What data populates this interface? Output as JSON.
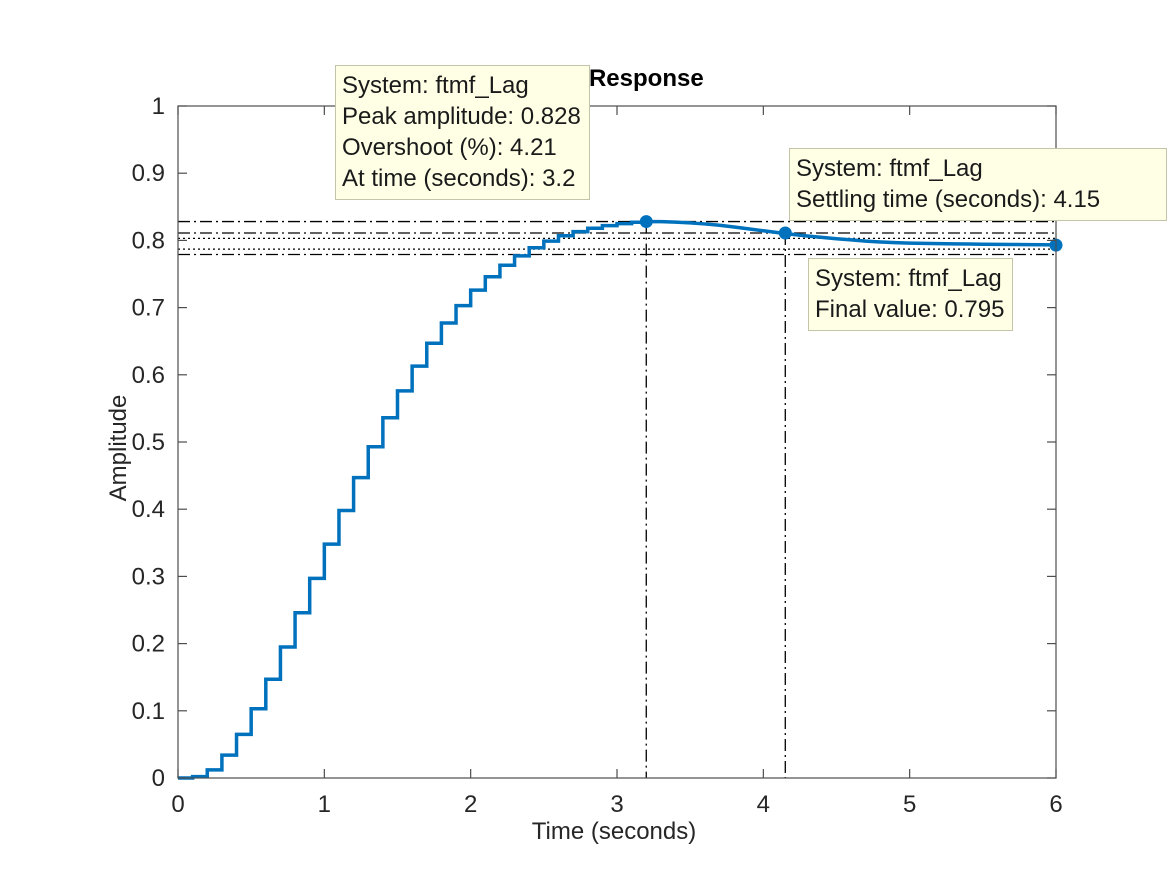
{
  "chart_data": {
    "type": "line",
    "title": "Step Response",
    "xlabel": "Time (seconds)",
    "ylabel": "Amplitude",
    "xlim": [
      0,
      6
    ],
    "ylim": [
      0,
      1
    ],
    "xticks": [
      "0",
      "1",
      "2",
      "3",
      "4",
      "5",
      "6"
    ],
    "yticks": [
      "0",
      "0.1",
      "0.2",
      "0.3",
      "0.4",
      "0.5",
      "0.6",
      "0.7",
      "0.8",
      "0.9",
      "1"
    ],
    "grid": false,
    "series": [
      {
        "color": "#0072bd",
        "step": true,
        "x": [
          0,
          0.1,
          0.2,
          0.3,
          0.4,
          0.5,
          0.6,
          0.7,
          0.8,
          0.9,
          1.0,
          1.1,
          1.2,
          1.3,
          1.4,
          1.5,
          1.6,
          1.7,
          1.8,
          1.9,
          2.0,
          2.1,
          2.2,
          2.3,
          2.4,
          2.5,
          2.6,
          2.7,
          2.8,
          2.9,
          3.0,
          3.1,
          3.2,
          3.3,
          3.4,
          3.5,
          3.6,
          3.7,
          3.8,
          3.9,
          4.0,
          4.1,
          4.2,
          4.3,
          4.4,
          4.5,
          4.6,
          4.7,
          4.8,
          4.9,
          5.0,
          5.1,
          5.2,
          5.3,
          5.4,
          5.5,
          5.6,
          5.7,
          5.8,
          5.9,
          6.0
        ],
        "y": [
          0,
          0.002,
          0.012,
          0.034,
          0.065,
          0.103,
          0.147,
          0.195,
          0.246,
          0.297,
          0.348,
          0.398,
          0.447,
          0.493,
          0.536,
          0.576,
          0.613,
          0.647,
          0.677,
          0.703,
          0.726,
          0.746,
          0.763,
          0.777,
          0.789,
          0.799,
          0.807,
          0.813,
          0.818,
          0.822,
          0.825,
          0.827,
          0.828,
          0.8279,
          0.8272,
          0.826,
          0.8245,
          0.8225,
          0.82,
          0.8172,
          0.8143,
          0.8115,
          0.809,
          0.8066,
          0.8045,
          0.8025,
          0.8007,
          0.799,
          0.7977,
          0.7967,
          0.796,
          0.7956,
          0.7952,
          0.7949,
          0.7946,
          0.7943,
          0.7941,
          0.7939,
          0.7937,
          0.7935,
          0.7933
        ]
      }
    ],
    "reference_lines": {
      "peak_amplitude": 0.828,
      "peak_time": 3.2,
      "settling_upper": 0.811,
      "settling_lower": 0.779,
      "settling_time": 4.15,
      "final_value": 0.795,
      "final_band": [
        0.787,
        0.803
      ],
      "settling_marker_y": 0.811,
      "final_marker_y": 0.793
    },
    "annotations": [
      {
        "name": "peak",
        "lines": [
          "System: ftmf_Lag",
          "Peak amplitude: 0.828",
          "Overshoot (%): 4.21",
          "At time (seconds): 3.2"
        ]
      },
      {
        "name": "settling",
        "lines": [
          "System: ftmf_Lag",
          "Settling time (seconds): 4.15"
        ]
      },
      {
        "name": "final",
        "lines": [
          "System: ftmf_Lag",
          "Final value: 0.795"
        ]
      }
    ]
  }
}
